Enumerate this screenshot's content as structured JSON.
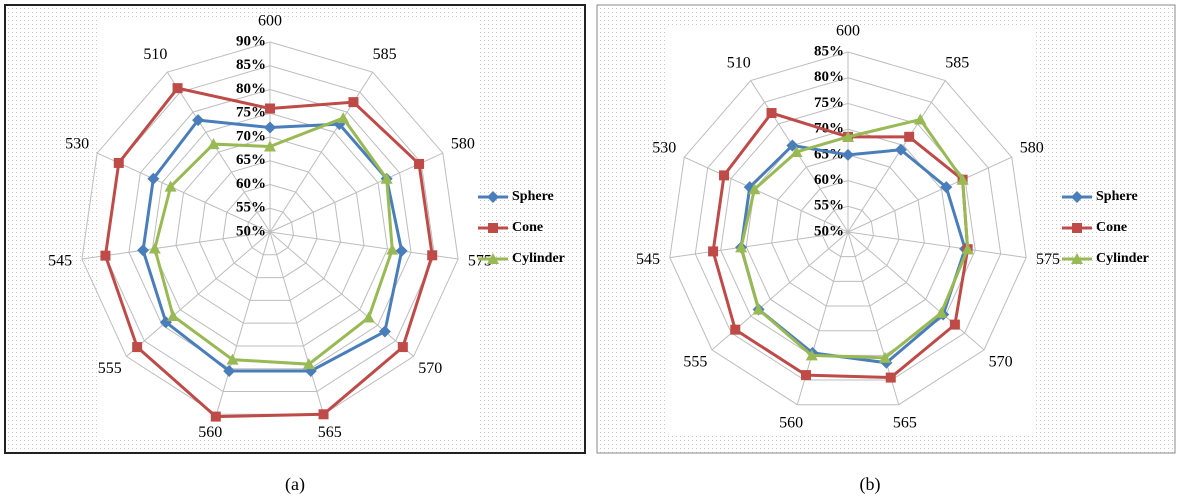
{
  "chart_data": [
    {
      "type": "radar",
      "caption": "(a)",
      "categories": [
        "600",
        "585",
        "580",
        "575",
        "570",
        "565",
        "560",
        "555",
        "545",
        "530",
        "510"
      ],
      "rlim": [
        50,
        90
      ],
      "rticks": [
        {
          "value": 50,
          "label": "50%"
        },
        {
          "value": 55,
          "label": "55%"
        },
        {
          "value": 60,
          "label": "60%"
        },
        {
          "value": 65,
          "label": "65%"
        },
        {
          "value": 70,
          "label": "70%"
        },
        {
          "value": 75,
          "label": "75%"
        },
        {
          "value": 80,
          "label": "80%"
        },
        {
          "value": 85,
          "label": "85%"
        },
        {
          "value": 90,
          "label": "90%"
        }
      ],
      "grid": true,
      "legend": "right",
      "series": [
        {
          "name": "Sphere",
          "color": "#4a7ebb",
          "marker": "diamond",
          "values": [
            72,
            77,
            77,
            78,
            82,
            80.5,
            80.5,
            79,
            77,
            77,
            78
          ]
        },
        {
          "name": "Cone",
          "color": "#be4b48",
          "marker": "square",
          "values": [
            76,
            82.5,
            84.5,
            84.5,
            87,
            90,
            90.5,
            87,
            85,
            85,
            86
          ]
        },
        {
          "name": "Cylinder",
          "color": "#98b954",
          "marker": "triangle",
          "values": [
            68,
            78.5,
            77,
            76,
            77.5,
            79,
            78,
            77,
            74.5,
            73,
            72
          ]
        }
      ]
    },
    {
      "type": "radar",
      "caption": "(b)",
      "categories": [
        "600",
        "585",
        "580",
        "575",
        "570",
        "565",
        "560",
        "555",
        "545",
        "530",
        "510"
      ],
      "rlim": [
        50,
        85
      ],
      "rticks": [
        {
          "value": 50,
          "label": "50%"
        },
        {
          "value": 55,
          "label": "55%"
        },
        {
          "value": 60,
          "label": "60%"
        },
        {
          "value": 65,
          "label": "65%"
        },
        {
          "value": 70,
          "label": "70%"
        },
        {
          "value": 75,
          "label": "75%"
        },
        {
          "value": 80,
          "label": "80%"
        },
        {
          "value": 85,
          "label": "85%"
        }
      ],
      "grid": true,
      "legend": "right",
      "series": [
        {
          "name": "Sphere",
          "color": "#4a7ebb",
          "marker": "diamond",
          "values": [
            65,
            69,
            71,
            73,
            74.5,
            76.5,
            74.5,
            73,
            71,
            71,
            70
          ]
        },
        {
          "name": "Cone",
          "color": "#be4b48",
          "marker": "square",
          "values": [
            68.5,
            72,
            74.5,
            73.5,
            77.5,
            79.5,
            79,
            79,
            76.5,
            76.5,
            77.5
          ]
        },
        {
          "name": "Cylinder",
          "color": "#98b954",
          "marker": "triangle",
          "values": [
            68.5,
            76,
            74.5,
            73.5,
            74,
            75.5,
            75,
            73,
            71,
            70,
            68.5
          ]
        }
      ]
    }
  ]
}
